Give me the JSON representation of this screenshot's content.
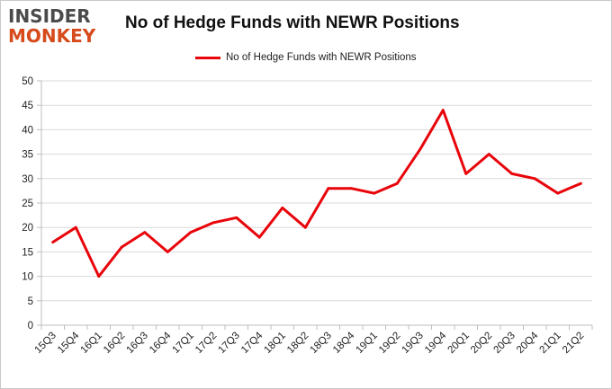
{
  "brand": {
    "line1": "INSIDER",
    "line2": "MONKEY"
  },
  "chart_data": {
    "type": "line",
    "title": "No of Hedge Funds with NEWR Positions",
    "xlabel": "",
    "ylabel": "",
    "categories": [
      "15Q3",
      "15Q4",
      "16Q1",
      "16Q2",
      "16Q3",
      "16Q4",
      "17Q1",
      "17Q2",
      "17Q3",
      "17Q4",
      "18Q1",
      "18Q2",
      "18Q3",
      "18Q4",
      "19Q1",
      "19Q2",
      "19Q3",
      "19Q4",
      "20Q1",
      "20Q2",
      "20Q3",
      "20Q4",
      "21Q1",
      "21Q2"
    ],
    "series": [
      {
        "name": "No of Hedge Funds with NEWR Positions",
        "values": [
          17,
          20,
          10,
          16,
          19,
          15,
          19,
          21,
          22,
          18,
          24,
          20,
          28,
          28,
          27,
          29,
          36,
          44,
          31,
          35,
          31,
          30,
          27,
          29
        ],
        "color": "#e8040a"
      }
    ],
    "ylim": [
      0,
      50
    ],
    "yticks": [
      0,
      5,
      10,
      15,
      20,
      25,
      30,
      35,
      40,
      45,
      50
    ],
    "grid": true,
    "legend": "top-center"
  }
}
